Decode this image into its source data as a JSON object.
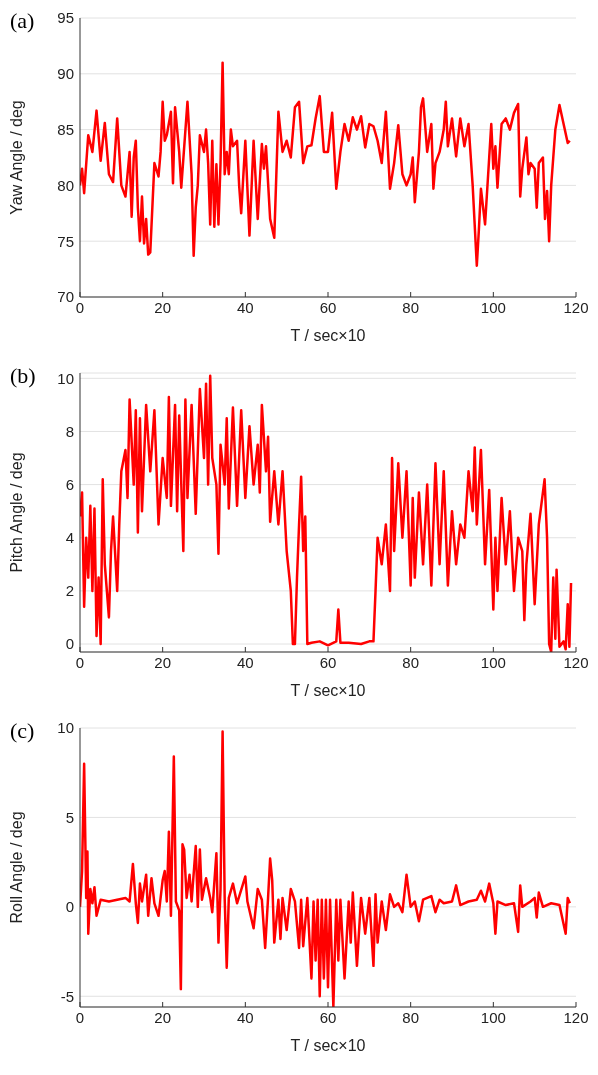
{
  "chart_data": [
    {
      "type": "line",
      "title": "(a)",
      "xlabel": "T / sec×10",
      "ylabel": "Yaw Angle / deg",
      "xlim": [
        0,
        120
      ],
      "xticks": [
        0,
        20,
        40,
        60,
        80,
        100,
        120
      ],
      "ylim": [
        70,
        95
      ],
      "yticks": [
        70,
        75,
        80,
        85,
        90,
        95
      ],
      "grid": "y",
      "series": [
        {
          "color": "#ff0000",
          "x": [
            0,
            0.5,
            1,
            2,
            3,
            4,
            5,
            6,
            7,
            8,
            9,
            10,
            11,
            12,
            12.5,
            13,
            13.5,
            14,
            14.5,
            15,
            15.5,
            16,
            16.5,
            17,
            18,
            19,
            19.5,
            20,
            20.5,
            21,
            22,
            22.5,
            23,
            24,
            24.5,
            26,
            27,
            27.5,
            28,
            28.5,
            29,
            30,
            30.5,
            31,
            31.5,
            32,
            32.5,
            33,
            33.5,
            34,
            34.5,
            35,
            35.5,
            36,
            36.5,
            37,
            38,
            38.5,
            39,
            40,
            41,
            42,
            43,
            44,
            44.5,
            45,
            46,
            47,
            48,
            49,
            50,
            51,
            52,
            53,
            54,
            55,
            56,
            57,
            58,
            59,
            60,
            61,
            62,
            63,
            64,
            65,
            66,
            67,
            68,
            69,
            70,
            71,
            72,
            73,
            74,
            75,
            76,
            77,
            78,
            79,
            80,
            80.5,
            81,
            82,
            82.5,
            83,
            84,
            85,
            85.5,
            86,
            87,
            88,
            88.5,
            89,
            90,
            91,
            92,
            93,
            94,
            95,
            96,
            96.5,
            97,
            98,
            99,
            99.5,
            100,
            100.5,
            101,
            102,
            103,
            104,
            105,
            106,
            106.5,
            107,
            108,
            108.5,
            109,
            110,
            110.5,
            111,
            112,
            112.5,
            113,
            113.5,
            114,
            114.5,
            115,
            116,
            117,
            118,
            118.5
          ],
          "values": [
            80,
            81.5,
            79.3,
            84.5,
            83,
            86.7,
            82.2,
            85.6,
            81,
            80.3,
            86,
            80,
            79,
            83,
            77.2,
            82.5,
            84,
            78,
            75,
            79,
            74.8,
            77,
            73.8,
            74,
            82,
            80.8,
            83,
            87.5,
            84,
            84.5,
            86.6,
            80.2,
            87,
            83,
            79.8,
            87.5,
            81,
            73.7,
            78,
            80,
            84.5,
            83,
            85,
            82,
            76.5,
            84,
            76.3,
            81.9,
            76.5,
            82,
            91,
            81,
            83,
            81,
            85,
            83.5,
            84,
            80,
            77.5,
            84,
            75.5,
            84,
            77,
            83.7,
            81.5,
            83.5,
            77,
            75.3,
            86.6,
            83,
            84,
            82.5,
            87,
            87.5,
            82,
            83.5,
            83.6,
            86,
            88,
            83,
            83,
            86.5,
            79.7,
            83,
            85.5,
            84,
            86.1,
            85,
            86.2,
            83.4,
            85.5,
            85.3,
            84,
            82,
            86.6,
            79.7,
            82,
            85.4,
            81,
            80,
            81,
            82.5,
            78.5,
            83,
            87,
            87.8,
            83,
            85.5,
            79.7,
            82,
            83,
            85,
            87.5,
            83.5,
            86,
            82.6,
            86,
            83.5,
            85.5,
            80,
            72.8,
            76,
            79.7,
            76.5,
            82.5,
            85.5,
            81.5,
            83.5,
            79.8,
            85.5,
            86,
            85,
            86.5,
            87.3,
            79,
            81.5,
            84.3,
            81,
            82,
            81.5,
            78,
            82,
            82.5,
            77,
            79.5,
            75,
            80,
            82.5,
            85,
            87.2,
            85.5,
            83.8,
            84
          ]
        }
      ]
    },
    {
      "type": "line",
      "title": "(b)",
      "xlabel": "T / sec×10",
      "ylabel": "Pitch Angle / deg",
      "xlim": [
        0,
        120
      ],
      "xticks": [
        0,
        20,
        40,
        60,
        80,
        100,
        120
      ],
      "ylim": [
        -0.3,
        10.2
      ],
      "yticks": [
        0,
        2,
        4,
        6,
        8,
        10
      ],
      "grid": "y",
      "series": [
        {
          "color": "#ff0000",
          "x": [
            0,
            0.5,
            1,
            1.5,
            2,
            2.5,
            3,
            3.5,
            4,
            4.5,
            5,
            5.5,
            6,
            7,
            7.5,
            8,
            9,
            9.5,
            10,
            11,
            11.5,
            12,
            13,
            13.5,
            14,
            14.5,
            15,
            16,
            17,
            18,
            19,
            20,
            21,
            21.5,
            22,
            23,
            23.5,
            24,
            25,
            25.5,
            26,
            27,
            28,
            29,
            30,
            30.5,
            31,
            31.5,
            32,
            33,
            33.5,
            34,
            35,
            35.5,
            36,
            37,
            38,
            39,
            40,
            41,
            42,
            43,
            43.5,
            44,
            45,
            45.5,
            46,
            47,
            48,
            49,
            50,
            51,
            51.5,
            52,
            52.5,
            53,
            53.5,
            54,
            54.5,
            55,
            56,
            58,
            60,
            62,
            62.5,
            63,
            65,
            68,
            70,
            71,
            71.5,
            72,
            73,
            74,
            75,
            75.5,
            76,
            77,
            78,
            79,
            80,
            80.5,
            81,
            82,
            83,
            84,
            85,
            86,
            87,
            88,
            89,
            90,
            91,
            92,
            93,
            94,
            95,
            95.5,
            96,
            97,
            98,
            99,
            100,
            100.5,
            101,
            102,
            103,
            104,
            105,
            106,
            107,
            107.5,
            108,
            109,
            110,
            111,
            112.4,
            113,
            113.5,
            114,
            114.5,
            115,
            115.3,
            116,
            117,
            117.5,
            118,
            118.4,
            118.8
          ],
          "values": [
            4.8,
            5.7,
            1.4,
            4,
            2.5,
            5.2,
            2,
            5.1,
            0.3,
            2.5,
            0,
            6.2,
            3,
            1,
            3.5,
            4.8,
            2,
            4.5,
            6.5,
            7.3,
            5.5,
            9.2,
            6,
            8.8,
            4.2,
            8.5,
            5,
            9,
            6.5,
            8.8,
            4.5,
            7,
            5.5,
            9.3,
            5.2,
            9,
            5,
            8.6,
            3.5,
            9.2,
            5.5,
            9,
            4.9,
            9.6,
            7,
            9.8,
            6,
            10.1,
            7,
            6,
            3.4,
            7.5,
            6,
            8.5,
            5.1,
            8.9,
            5.2,
            8.8,
            5.5,
            8.2,
            6,
            7.5,
            5.7,
            9,
            6.5,
            7.8,
            4.6,
            6.5,
            4.5,
            6.5,
            3.5,
            2,
            0,
            0,
            2.5,
            4.5,
            6.3,
            3.5,
            4.8,
            0,
            0.05,
            0.1,
            -0.05,
            0.1,
            1.3,
            0.05,
            0.05,
            0,
            0.1,
            0.1,
            2,
            4,
            3,
            4.5,
            2,
            7,
            3.5,
            6.8,
            4,
            6.5,
            2.2,
            5.5,
            2.5,
            5.7,
            3,
            6,
            2.2,
            6.8,
            3,
            6.5,
            2.2,
            5,
            3,
            4.5,
            4,
            6.5,
            5,
            7.4,
            4.5,
            7.3,
            3,
            5.8,
            1.3,
            4,
            2,
            5.5,
            3,
            5,
            2,
            4,
            3.5,
            0.9,
            3,
            4.9,
            1.5,
            4.5,
            6.2,
            4,
            0,
            -0.3,
            2.5,
            0.2,
            2.8,
            -0.1,
            0.1,
            -0.2,
            1.5,
            -0.1,
            2.3
          ]
        }
      ]
    },
    {
      "type": "line",
      "title": "(c)",
      "xlabel": "T / sec×10",
      "ylabel": "Roll Angle / deg",
      "xlim": [
        0,
        120
      ],
      "xticks": [
        0,
        20,
        40,
        60,
        80,
        100,
        120
      ],
      "ylim": [
        -5.6,
        10
      ],
      "yticks": [
        -5,
        0,
        5,
        10
      ],
      "grid": "y",
      "series": [
        {
          "color": "#ff0000",
          "x": [
            0,
            0.5,
            1,
            1.5,
            1.8,
            2,
            2.5,
            3,
            3.5,
            4,
            5,
            7,
            9,
            11,
            12,
            12.8,
            13.5,
            14,
            14.5,
            15,
            16,
            16.5,
            17.3,
            18,
            19,
            20,
            20.5,
            21,
            21.5,
            22,
            22.7,
            23.2,
            24,
            24.4,
            24.8,
            25.2,
            25.8,
            26.5,
            27,
            28,
            28.5,
            29,
            29.5,
            30.5,
            31.5,
            32,
            33,
            33.5,
            34,
            34.5,
            35,
            35.5,
            36,
            37,
            38,
            40,
            40.5,
            42,
            43,
            44,
            44.8,
            45.5,
            46,
            46.5,
            47,
            48,
            48.5,
            49,
            50,
            51,
            52,
            53,
            53.5,
            54,
            55,
            56,
            56.5,
            57,
            57.5,
            58,
            58.5,
            59,
            59.5,
            60,
            60.5,
            61.3,
            62,
            62.5,
            63,
            64,
            65,
            65.5,
            66,
            67,
            68,
            69,
            70,
            71,
            71.5,
            72,
            73,
            74,
            75,
            76,
            77,
            78,
            79,
            80,
            81,
            82,
            83,
            85,
            86,
            87,
            88,
            90,
            91,
            92,
            94,
            96,
            97,
            98,
            99,
            100,
            100.5,
            101,
            103,
            105,
            106,
            106.5,
            107,
            109,
            110,
            110.5,
            111,
            112,
            114,
            116,
            117.5,
            118,
            118.5
          ],
          "values": [
            0,
            2,
            8,
            0.5,
            3.1,
            -1.5,
            1,
            0.2,
            1.1,
            -0.5,
            0.4,
            0.3,
            0.4,
            0.5,
            0.3,
            2.4,
            0.2,
            -0.9,
            1.3,
            0.3,
            1.8,
            -0.5,
            1.6,
            0.2,
            -0.5,
            1.5,
            2,
            0.3,
            4.2,
            -0.5,
            8.4,
            0.3,
            -0.2,
            -4.6,
            3.5,
            3.2,
            0.5,
            1.8,
            0.3,
            3.4,
            0,
            3.2,
            0.4,
            1.6,
            0.5,
            -0.3,
            3,
            -2,
            1,
            9.8,
            0.5,
            -3.4,
            0.5,
            1.3,
            0.2,
            1.7,
            0.3,
            -1.2,
            1,
            0.4,
            -2.3,
            0.5,
            2.7,
            1.5,
            -2,
            0.4,
            -1.8,
            0.5,
            -1.3,
            1,
            0.3,
            -2.3,
            0.4,
            -2.2,
            0.5,
            -4,
            0.3,
            -3,
            0.4,
            -5,
            0.4,
            -4,
            0.4,
            -4.5,
            0.4,
            -5.6,
            0.4,
            -3,
            0.4,
            -4,
            0.3,
            -2,
            0.8,
            -3.3,
            0.5,
            -1.5,
            0.5,
            -3.3,
            0.7,
            -2,
            0.3,
            -1.3,
            0.7,
            0,
            0.2,
            -0.3,
            1.8,
            0,
            0.3,
            -0.8,
            0.4,
            0.6,
            -0.3,
            0.4,
            0.2,
            0.3,
            1.2,
            0.1,
            0.3,
            0.4,
            0.9,
            0.3,
            1.3,
            0.2,
            -1.5,
            0.3,
            0.1,
            0.2,
            -1.4,
            1.2,
            0,
            0.3,
            0.5,
            -0.6,
            0.8,
            0,
            0.2,
            0.1,
            -1.5,
            0.5,
            0.2
          ]
        }
      ]
    }
  ]
}
